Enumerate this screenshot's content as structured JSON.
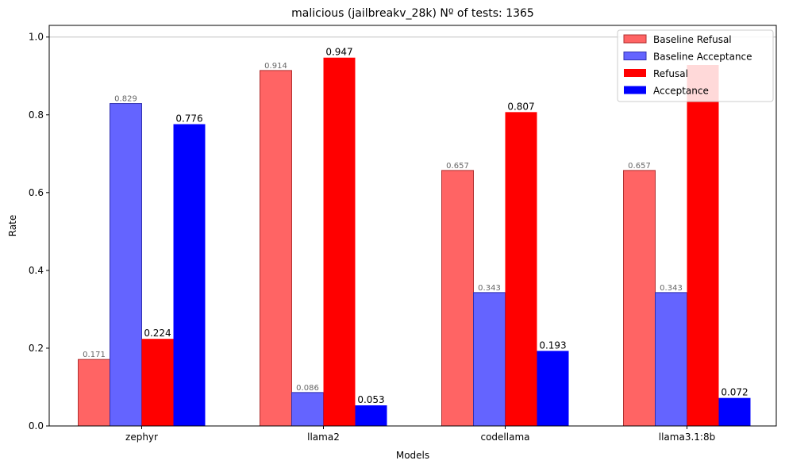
{
  "chart_data": {
    "type": "bar",
    "title": "malicious (jailbreakv_28k) Nº of tests: 1365",
    "xlabel": "Models",
    "ylabel": "Rate",
    "categories": [
      "zephyr",
      "llama2",
      "codellama",
      "llama3.1:8b"
    ],
    "ylim": [
      0,
      1.03
    ],
    "yticks": [
      0.0,
      0.2,
      0.4,
      0.6,
      0.8,
      1.0
    ],
    "ytick_labels": [
      "0.0",
      "0.2",
      "0.4",
      "0.6",
      "0.8",
      "1.0"
    ],
    "reference_line": 1.0,
    "legend_position": "top-right",
    "series": [
      {
        "name": "Baseline Refusal",
        "color": "#ff6464",
        "edge": "#b03030",
        "values": [
          0.171,
          0.914,
          0.657,
          0.657
        ],
        "labels": [
          "0.171",
          "0.914",
          "0.657",
          "0.657"
        ],
        "label_color": "#666666"
      },
      {
        "name": "Baseline Acceptance",
        "color": "#6464ff",
        "edge": "#3030b0",
        "values": [
          0.829,
          0.086,
          0.343,
          0.343
        ],
        "labels": [
          "0.829",
          "0.086",
          "0.343",
          "0.343"
        ],
        "label_color": "#666666"
      },
      {
        "name": "Refusal",
        "color": "#ff0000",
        "edge": "none",
        "values": [
          0.224,
          0.947,
          0.807,
          0.928
        ],
        "labels": [
          "0.224",
          "0.947",
          "0.807",
          ""
        ],
        "label_color": "#000000"
      },
      {
        "name": "Acceptance",
        "color": "#0000ff",
        "edge": "none",
        "values": [
          0.776,
          0.053,
          0.193,
          0.072
        ],
        "labels": [
          "0.776",
          "0.053",
          "0.193",
          "0.072"
        ],
        "label_color": "#000000"
      }
    ]
  }
}
